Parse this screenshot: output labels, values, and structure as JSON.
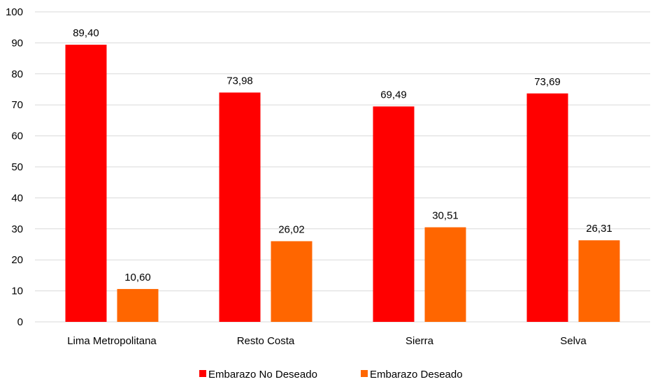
{
  "chart_data": {
    "type": "bar",
    "title": "",
    "xlabel": "",
    "ylabel": "",
    "categories": [
      "Lima Metropolitana",
      "Resto Costa",
      "Sierra",
      "Selva"
    ],
    "series": [
      {
        "name": "Embarazo No Deseado",
        "color": "#ff0000",
        "values": [
          89.4,
          73.98,
          69.49,
          73.69
        ],
        "labels": [
          "89,40",
          "73,98",
          "69,49",
          "73,69"
        ]
      },
      {
        "name": "Embarazo Deseado",
        "color": "#ff6600",
        "values": [
          10.6,
          26.02,
          30.51,
          26.31
        ],
        "labels": [
          "10,60",
          "26,02",
          "30,51",
          "26,31"
        ]
      }
    ],
    "ylim": [
      0,
      100
    ],
    "yticks": [
      0,
      10,
      20,
      30,
      40,
      50,
      60,
      70,
      80,
      90,
      100
    ],
    "grid": true,
    "legend_position": "bottom-center"
  }
}
